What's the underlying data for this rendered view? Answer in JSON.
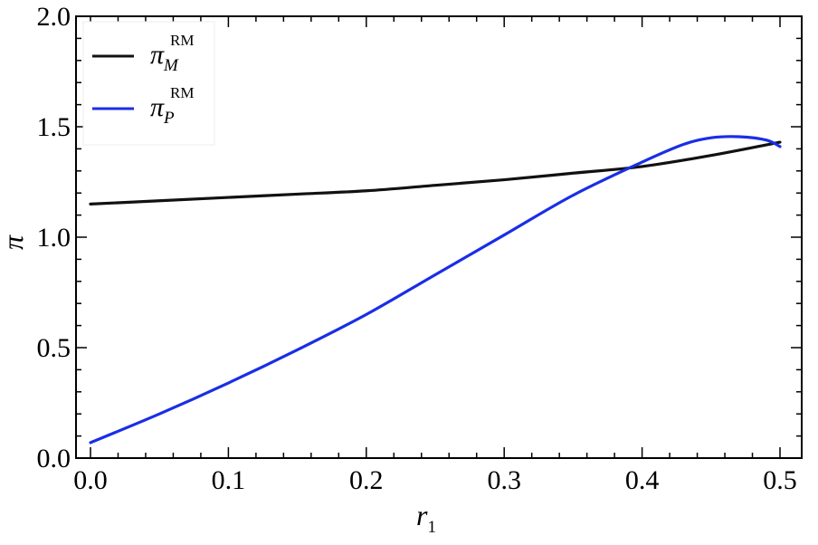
{
  "chart_data": {
    "type": "line",
    "xlabel": "r",
    "xlabel_subscript": "1",
    "ylabel": "π",
    "xlim": [
      0.0,
      0.5
    ],
    "ylim": [
      0.0,
      2.0
    ],
    "x_ticks": [
      0.0,
      0.1,
      0.2,
      0.3,
      0.4,
      0.5
    ],
    "x_tick_labels": [
      "0.0",
      "0.1",
      "0.2",
      "0.3",
      "0.4",
      "0.5"
    ],
    "y_ticks": [
      0.0,
      0.5,
      1.0,
      1.5,
      2.0
    ],
    "y_tick_labels": [
      "0.0",
      "0.5",
      "1.0",
      "1.5",
      "2.0"
    ],
    "grid": false,
    "legend_position": "top-left",
    "series": [
      {
        "name": "π",
        "name_subscript": "M",
        "name_superscript": "RM",
        "color": "#111111",
        "x": [
          0.0,
          0.05,
          0.1,
          0.15,
          0.2,
          0.25,
          0.3,
          0.35,
          0.4,
          0.45,
          0.5
        ],
        "y": [
          1.15,
          1.165,
          1.18,
          1.195,
          1.21,
          1.235,
          1.26,
          1.29,
          1.32,
          1.37,
          1.43
        ]
      },
      {
        "name": "π",
        "name_subscript": "P",
        "name_superscript": "RM",
        "color": "#1a2ee6",
        "x": [
          0.0,
          0.05,
          0.1,
          0.15,
          0.2,
          0.25,
          0.3,
          0.35,
          0.4,
          0.43,
          0.45,
          0.47,
          0.49,
          0.5
        ],
        "y": [
          0.07,
          0.2,
          0.34,
          0.49,
          0.65,
          0.83,
          1.01,
          1.19,
          1.34,
          1.42,
          1.45,
          1.455,
          1.44,
          1.41
        ]
      }
    ]
  }
}
